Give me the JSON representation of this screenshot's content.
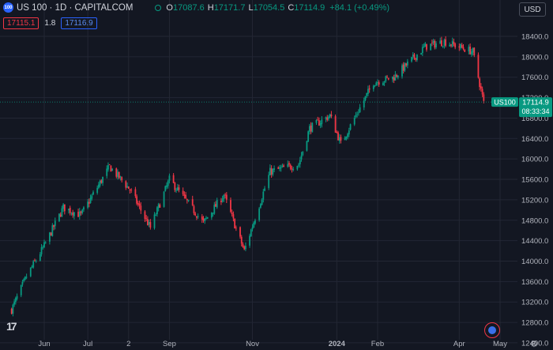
{
  "header": {
    "symbol_badge": "100",
    "title": "US 100 · 1D · CAPITALCOM",
    "ohlc": [
      {
        "label": "O",
        "value": "17087.6"
      },
      {
        "label": "H",
        "value": "17171.7"
      },
      {
        "label": "L",
        "value": "17054.5"
      },
      {
        "label": "C",
        "value": "17114.9"
      }
    ],
    "change": "+84.1 (+0.49%)",
    "sell_price": "17115.1",
    "spread": "1.8",
    "buy_price": "17116.9",
    "currency": "USD"
  },
  "colors": {
    "background": "#131722",
    "up": "#089981",
    "down": "#f23645",
    "grid": "#232734",
    "text": "#b2b5be"
  },
  "branding": {
    "logo_text": "17"
  },
  "chart_data": {
    "type": "candlestick",
    "title": "US 100 · 1D · CAPITALCOM",
    "xlabel": "",
    "ylabel": "",
    "grid": true,
    "y_range": [
      12400,
      18600
    ],
    "y_ticks": [
      12400,
      12800,
      13200,
      13600,
      14000,
      14400,
      14800,
      15200,
      15600,
      16000,
      16400,
      16800,
      17200,
      17600,
      18000,
      18400
    ],
    "y_tick_labels": [
      "12400.0",
      "12800.0",
      "13200.0",
      "13600.0",
      "14000.0",
      "14400.0",
      "14800.0",
      "15200.0",
      "15600.0",
      "16000.0",
      "16400.0",
      "16800.0",
      "17200.0",
      "17600.0",
      "18000.0",
      "18400.0"
    ],
    "x_range": [
      "2023-05-08",
      "2024-05-06"
    ],
    "x_ticks": [
      {
        "date": "2023-06-01",
        "label": "Jun",
        "bold": false
      },
      {
        "date": "2023-07-03",
        "label": "Jul",
        "bold": false
      },
      {
        "date": "2023-08-02",
        "label": "2",
        "bold": false
      },
      {
        "date": "2023-09-01",
        "label": "Sep",
        "bold": false
      },
      {
        "date": "2023-11-01",
        "label": "Nov",
        "bold": false
      },
      {
        "date": "2024-01-02",
        "label": "2024",
        "bold": true
      },
      {
        "date": "2024-02-01",
        "label": "Feb",
        "bold": false
      },
      {
        "date": "2024-04-01",
        "label": "Apr",
        "bold": false
      },
      {
        "date": "2024-05-01",
        "label": "May",
        "bold": false
      }
    ],
    "close_path": [
      [
        "2023-05-08",
        13050
      ],
      [
        "2023-05-19",
        13700
      ],
      [
        "2023-06-01",
        14300
      ],
      [
        "2023-06-15",
        15050
      ],
      [
        "2023-06-28",
        14900
      ],
      [
        "2023-07-19",
        15850
      ],
      [
        "2023-08-03",
        15400
      ],
      [
        "2023-08-18",
        14650
      ],
      [
        "2023-09-01",
        15600
      ],
      [
        "2023-09-26",
        14750
      ],
      [
        "2023-10-11",
        15300
      ],
      [
        "2023-10-26",
        14200
      ],
      [
        "2023-11-14",
        15750
      ],
      [
        "2023-12-05",
        15900
      ],
      [
        "2023-12-13",
        16600
      ],
      [
        "2023-12-28",
        16850
      ],
      [
        "2024-01-05",
        16300
      ],
      [
        "2024-01-29",
        17500
      ],
      [
        "2024-02-13",
        17600
      ],
      [
        "2024-03-07",
        18200
      ],
      [
        "2024-03-21",
        18300
      ],
      [
        "2024-04-11",
        18100
      ],
      [
        "2024-04-19",
        17100
      ]
    ],
    "last_price": {
      "symbol": "US100",
      "value": "17114.9",
      "countdown": "08:33:34"
    }
  }
}
